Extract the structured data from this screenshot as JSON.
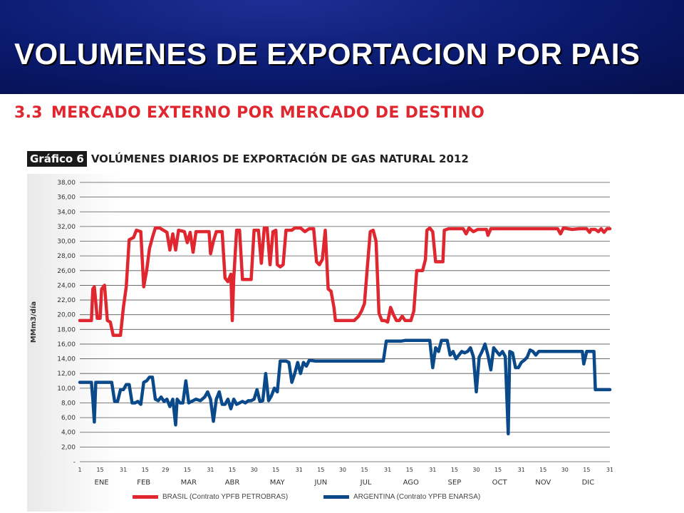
{
  "slide": {
    "title": "VOLUMENES DE EXPORTACION POR PAIS",
    "section_number": "3.3",
    "section_title": "MERCADO EXTERNO POR MERCADO DE DESTINO",
    "header_color": "#0a1a6e",
    "accent_color": "#e0262f"
  },
  "chart_caption": {
    "label": "Gráfico 6",
    "title": "VOLÚMENES DIARIOS DE EXPORTACIÓN DE GAS NATURAL 2012"
  },
  "chart_data": {
    "type": "line",
    "title": "VOLÚMENES DIARIOS DE EXPORTACIÓN DE GAS NATURAL 2012",
    "xlabel": "",
    "ylabel": "MMm3/día",
    "ylim": [
      0,
      38
    ],
    "xlim": [
      1,
      366
    ],
    "grid": true,
    "legend_position": "bottom",
    "y_ticks": [
      {
        "value": 0,
        "label": "-"
      },
      {
        "value": 2,
        "label": "2,00"
      },
      {
        "value": 4,
        "label": "4,00"
      },
      {
        "value": 6,
        "label": "6,00"
      },
      {
        "value": 8,
        "label": "8,00"
      },
      {
        "value": 10,
        "label": "10,00"
      },
      {
        "value": 12,
        "label": "12,00"
      },
      {
        "value": 14,
        "label": "14,00"
      },
      {
        "value": 16,
        "label": "16,00"
      },
      {
        "value": 18,
        "label": "18,00"
      },
      {
        "value": 20,
        "label": "20,00"
      },
      {
        "value": 22,
        "label": "22,00"
      },
      {
        "value": 24,
        "label": "24,00"
      },
      {
        "value": 26,
        "label": "26,00"
      },
      {
        "value": 28,
        "label": "28,00"
      },
      {
        "value": 30,
        "label": "30,00"
      },
      {
        "value": 32,
        "label": "32,00"
      },
      {
        "value": 34,
        "label": "34,00"
      },
      {
        "value": 36,
        "label": "36,00"
      },
      {
        "value": 38,
        "label": "38,00"
      }
    ],
    "x_day_ticks": [
      {
        "day": 1,
        "label": "1"
      },
      {
        "day": 15,
        "label": "15"
      },
      {
        "day": 31,
        "label": "31"
      },
      {
        "day": 46,
        "label": "15"
      },
      {
        "day": 60,
        "label": "29"
      },
      {
        "day": 75,
        "label": "15"
      },
      {
        "day": 91,
        "label": "31"
      },
      {
        "day": 106,
        "label": "15"
      },
      {
        "day": 121,
        "label": "30"
      },
      {
        "day": 136,
        "label": "15"
      },
      {
        "day": 152,
        "label": "31"
      },
      {
        "day": 167,
        "label": "15"
      },
      {
        "day": 182,
        "label": "30"
      },
      {
        "day": 197,
        "label": "15"
      },
      {
        "day": 213,
        "label": "31"
      },
      {
        "day": 228,
        "label": "15"
      },
      {
        "day": 244,
        "label": "31"
      },
      {
        "day": 259,
        "label": "15"
      },
      {
        "day": 274,
        "label": "30"
      },
      {
        "day": 289,
        "label": "15"
      },
      {
        "day": 305,
        "label": "31"
      },
      {
        "day": 320,
        "label": "15"
      },
      {
        "day": 335,
        "label": "30"
      },
      {
        "day": 350,
        "label": "15"
      },
      {
        "day": 366,
        "label": "31"
      }
    ],
    "months": [
      {
        "day": 16,
        "label": "ENE"
      },
      {
        "day": 45,
        "label": "FEB"
      },
      {
        "day": 76,
        "label": "MAR"
      },
      {
        "day": 106,
        "label": "ABR"
      },
      {
        "day": 137,
        "label": "MAY"
      },
      {
        "day": 167,
        "label": "JUN"
      },
      {
        "day": 198,
        "label": "JUL"
      },
      {
        "day": 229,
        "label": "AGO"
      },
      {
        "day": 259,
        "label": "SEP"
      },
      {
        "day": 290,
        "label": "OCT"
      },
      {
        "day": 320,
        "label": "NOV"
      },
      {
        "day": 351,
        "label": "DIC"
      }
    ],
    "series": [
      {
        "name": "BRASIL (Contrato YPFB  PETROBRAS)",
        "color": "#e0262f",
        "points": [
          [
            1,
            19.2
          ],
          [
            9,
            19.2
          ],
          [
            10,
            23.5
          ],
          [
            11,
            23.8
          ],
          [
            13,
            19.5
          ],
          [
            15,
            19.5
          ],
          [
            16,
            23.5
          ],
          [
            18,
            24
          ],
          [
            20,
            19.2
          ],
          [
            22,
            19
          ],
          [
            24,
            17.2
          ],
          [
            29,
            17.2
          ],
          [
            31,
            21
          ],
          [
            33,
            23.8
          ],
          [
            35,
            30.2
          ],
          [
            38,
            30.5
          ],
          [
            40,
            31.5
          ],
          [
            43,
            31.3
          ],
          [
            45,
            23.8
          ],
          [
            47,
            26
          ],
          [
            49,
            29
          ],
          [
            51,
            30.5
          ],
          [
            53,
            31.8
          ],
          [
            56,
            31.8
          ],
          [
            61,
            31.2
          ],
          [
            63,
            28.8
          ],
          [
            65,
            31
          ],
          [
            67,
            28.8
          ],
          [
            69,
            31.5
          ],
          [
            73,
            31.3
          ],
          [
            75,
            29.8
          ],
          [
            77,
            31.2
          ],
          [
            79,
            28.5
          ],
          [
            81,
            31.3
          ],
          [
            90,
            31.3
          ],
          [
            91,
            28.3
          ],
          [
            93,
            30
          ],
          [
            95,
            31.3
          ],
          [
            99,
            31.3
          ],
          [
            101,
            25
          ],
          [
            103,
            24.5
          ],
          [
            105,
            25.5
          ],
          [
            106,
            19.2
          ],
          [
            107,
            25
          ],
          [
            109,
            31.5
          ],
          [
            111,
            31.5
          ],
          [
            113,
            24.8
          ],
          [
            119,
            24.8
          ],
          [
            121,
            31.5
          ],
          [
            124,
            31.5
          ],
          [
            126,
            27
          ],
          [
            128,
            31.8
          ],
          [
            130,
            31.8
          ],
          [
            132,
            26.8
          ],
          [
            134,
            31.3
          ],
          [
            136,
            31.5
          ],
          [
            137,
            26.8
          ],
          [
            139,
            26.5
          ],
          [
            141,
            26.8
          ],
          [
            143,
            31.5
          ],
          [
            147,
            31.5
          ],
          [
            149,
            31.8
          ],
          [
            153,
            31.8
          ],
          [
            156,
            31.3
          ],
          [
            159,
            31.7
          ],
          [
            162,
            31.7
          ],
          [
            164,
            27.2
          ],
          [
            166,
            26.8
          ],
          [
            168,
            27.5
          ],
          [
            170,
            31.5
          ],
          [
            172,
            23.5
          ],
          [
            174,
            23.2
          ],
          [
            176,
            21
          ],
          [
            177,
            19.2
          ],
          [
            183,
            19.2
          ],
          [
            186,
            19.2
          ],
          [
            190,
            19.2
          ],
          [
            193,
            19.8
          ],
          [
            195,
            20.5
          ],
          [
            197,
            21.5
          ],
          [
            199,
            26.5
          ],
          [
            201,
            31.3
          ],
          [
            203,
            31.5
          ],
          [
            205,
            30
          ],
          [
            207,
            20.2
          ],
          [
            209,
            19.2
          ],
          [
            211,
            19.2
          ],
          [
            213,
            19
          ],
          [
            215,
            21
          ],
          [
            217,
            20
          ],
          [
            219,
            19.2
          ],
          [
            221,
            19.2
          ],
          [
            223,
            19.8
          ],
          [
            225,
            19.2
          ],
          [
            227,
            19.2
          ],
          [
            229,
            19.2
          ],
          [
            231,
            20.5
          ],
          [
            233,
            26
          ],
          [
            235,
            26
          ],
          [
            237,
            26
          ],
          [
            239,
            27.5
          ],
          [
            240,
            31.5
          ],
          [
            242,
            31.8
          ],
          [
            244,
            31.3
          ],
          [
            246,
            27.2
          ],
          [
            249,
            27.2
          ],
          [
            251,
            27.2
          ],
          [
            252,
            31.5
          ],
          [
            255,
            31.7
          ],
          [
            265,
            31.7
          ],
          [
            267,
            31
          ],
          [
            269,
            31.8
          ],
          [
            272,
            31.3
          ],
          [
            275,
            31.6
          ],
          [
            281,
            31.6
          ],
          [
            282,
            30.8
          ],
          [
            284,
            31.7
          ],
          [
            295,
            31.7
          ],
          [
            310,
            31.7
          ],
          [
            330,
            31.7
          ],
          [
            332,
            31
          ],
          [
            334,
            31.8
          ],
          [
            340,
            31.6
          ],
          [
            345,
            31.7
          ],
          [
            350,
            31.7
          ],
          [
            352,
            31.2
          ],
          [
            353,
            31.6
          ],
          [
            356,
            31.6
          ],
          [
            358,
            31.3
          ],
          [
            360,
            31.7
          ],
          [
            362,
            31.2
          ],
          [
            364,
            31.7
          ],
          [
            366,
            31.7
          ]
        ]
      },
      {
        "name": "ARGENTINA (Contrato YPFB  ENARSA)",
        "color": "#0b4a8a",
        "points": [
          [
            1,
            10.8
          ],
          [
            9,
            10.8
          ],
          [
            10,
            8.5
          ],
          [
            11,
            5.4
          ],
          [
            12,
            10.8
          ],
          [
            23,
            10.8
          ],
          [
            25,
            8.2
          ],
          [
            27,
            8.2
          ],
          [
            29,
            9.8
          ],
          [
            31,
            9.8
          ],
          [
            33,
            10.5
          ],
          [
            35,
            10.5
          ],
          [
            37,
            8
          ],
          [
            39,
            8
          ],
          [
            41,
            8.2
          ],
          [
            43,
            7.8
          ],
          [
            45,
            10.8
          ],
          [
            47,
            11
          ],
          [
            49,
            11.5
          ],
          [
            51,
            11.5
          ],
          [
            53,
            8.5
          ],
          [
            55,
            8.3
          ],
          [
            57,
            8.8
          ],
          [
            59,
            8.2
          ],
          [
            61,
            8.5
          ],
          [
            63,
            7.5
          ],
          [
            65,
            8.5
          ],
          [
            67,
            5
          ],
          [
            68,
            8.5
          ],
          [
            70,
            8
          ],
          [
            72,
            8
          ],
          [
            74,
            11
          ],
          [
            76,
            8
          ],
          [
            78,
            8.2
          ],
          [
            81,
            8.5
          ],
          [
            84,
            8.3
          ],
          [
            87,
            8.8
          ],
          [
            89,
            9.5
          ],
          [
            91,
            8.5
          ],
          [
            93,
            5.5
          ],
          [
            95,
            8.5
          ],
          [
            97,
            9.5
          ],
          [
            99,
            7.8
          ],
          [
            101,
            7.8
          ],
          [
            103,
            8.5
          ],
          [
            105,
            7.2
          ],
          [
            107,
            8.5
          ],
          [
            109,
            7.8
          ],
          [
            111,
            8
          ],
          [
            113,
            8.2
          ],
          [
            115,
            8
          ],
          [
            117,
            8.3
          ],
          [
            119,
            8.3
          ],
          [
            121,
            8.5
          ],
          [
            123,
            9.8
          ],
          [
            125,
            8.2
          ],
          [
            127,
            8.3
          ],
          [
            129,
            12
          ],
          [
            131,
            8.3
          ],
          [
            133,
            9
          ],
          [
            135,
            10
          ],
          [
            137,
            9.5
          ],
          [
            139,
            13.7
          ],
          [
            143,
            13.7
          ],
          [
            145,
            13.5
          ],
          [
            147,
            10.8
          ],
          [
            149,
            12
          ],
          [
            151,
            13.5
          ],
          [
            153,
            12
          ],
          [
            155,
            13.5
          ],
          [
            157,
            13
          ],
          [
            159,
            13.8
          ],
          [
            163,
            13.7
          ],
          [
            175,
            13.7
          ],
          [
            190,
            13.7
          ],
          [
            210,
            13.7
          ],
          [
            212,
            16.4
          ],
          [
            222,
            16.4
          ],
          [
            225,
            16.5
          ],
          [
            242,
            16.5
          ],
          [
            244,
            12.8
          ],
          [
            246,
            15.5
          ],
          [
            248,
            15
          ],
          [
            250,
            16.5
          ],
          [
            254,
            16.5
          ],
          [
            256,
            14.5
          ],
          [
            258,
            15
          ],
          [
            260,
            14
          ],
          [
            262,
            14.5
          ],
          [
            264,
            15
          ],
          [
            266,
            14.8
          ],
          [
            268,
            15
          ],
          [
            270,
            15.5
          ],
          [
            272,
            14.3
          ],
          [
            274,
            9.5
          ],
          [
            276,
            14.2
          ],
          [
            278,
            15
          ],
          [
            280,
            16
          ],
          [
            282,
            14.5
          ],
          [
            284,
            12.5
          ],
          [
            286,
            15.5
          ],
          [
            288,
            15
          ],
          [
            290,
            14.5
          ],
          [
            292,
            15
          ],
          [
            294,
            14.3
          ],
          [
            296,
            3.8
          ],
          [
            297,
            15
          ],
          [
            299,
            14.8
          ],
          [
            301,
            12.8
          ],
          [
            303,
            12.8
          ],
          [
            305,
            13.5
          ],
          [
            307,
            13.8
          ],
          [
            309,
            14.2
          ],
          [
            311,
            15.2
          ],
          [
            313,
            15
          ],
          [
            315,
            14.5
          ],
          [
            317,
            15
          ],
          [
            320,
            15
          ],
          [
            330,
            15
          ],
          [
            345,
            15
          ],
          [
            347,
            15
          ],
          [
            348,
            13.3
          ],
          [
            350,
            15
          ],
          [
            353,
            15
          ],
          [
            355,
            15
          ],
          [
            356,
            9.8
          ],
          [
            358,
            9.8
          ],
          [
            360,
            9.8
          ],
          [
            364,
            9.8
          ],
          [
            366,
            9.8
          ]
        ]
      }
    ]
  }
}
